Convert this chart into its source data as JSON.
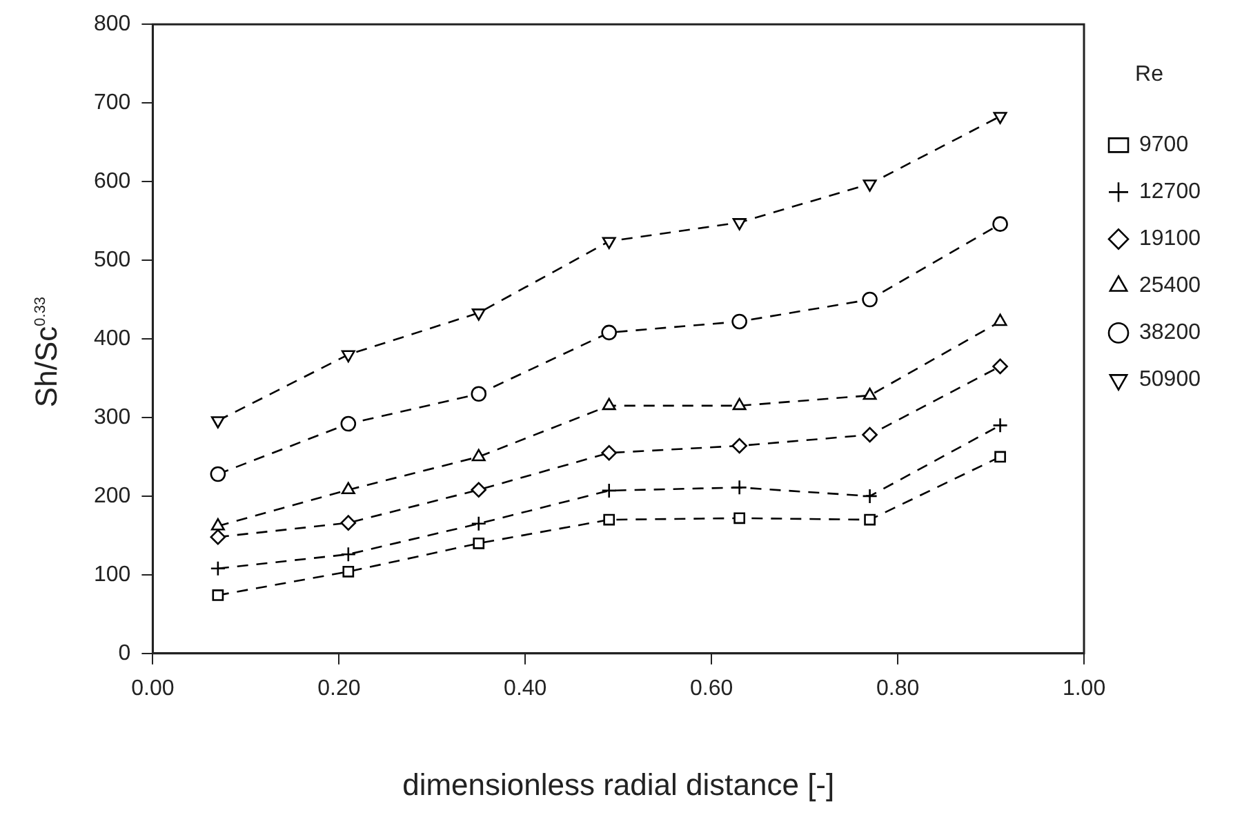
{
  "chart_data": {
    "type": "line",
    "xlabel": "dimensionless radial distance [-]",
    "ylabel": "Sh/Sc$^{0.33}$",
    "legend_title": "Re",
    "legend": "right",
    "grid": false,
    "line_style": "dashed",
    "x": [
      0.07,
      0.21,
      0.35,
      0.49,
      0.63,
      0.77,
      0.91
    ],
    "xlim": [
      0,
      1
    ],
    "xticks": [
      {
        "value": 0,
        "label": "0.00"
      },
      {
        "value": 0.2,
        "label": "0.20"
      },
      {
        "value": 0.4,
        "label": "0.40"
      },
      {
        "value": 0.6,
        "label": "0.60"
      },
      {
        "value": 0.8,
        "label": "0.80"
      },
      {
        "value": 1,
        "label": "1.00"
      }
    ],
    "ylim": [
      0,
      800
    ],
    "yticks": [
      0,
      100,
      200,
      300,
      400,
      500,
      600,
      700,
      800
    ],
    "series": [
      {
        "name": "9700",
        "color": "#000000",
        "marker": "square",
        "values": [
          74,
          104,
          140,
          170,
          172,
          170,
          250
        ]
      },
      {
        "name": "12700",
        "color": "#000000",
        "marker": "cross",
        "values": [
          108,
          126,
          165,
          207,
          211,
          200,
          290
        ]
      },
      {
        "name": "19100",
        "color": "#000000",
        "marker": "diamond",
        "values": [
          148,
          166,
          208,
          255,
          264,
          278,
          365
        ]
      },
      {
        "name": "25400",
        "color": "#000000",
        "marker": "triangle",
        "values": [
          162,
          208,
          250,
          315,
          315,
          328,
          422
        ]
      },
      {
        "name": "38200",
        "color": "#000000",
        "marker": "circle",
        "values": [
          228,
          292,
          330,
          408,
          422,
          450,
          546
        ]
      },
      {
        "name": "50900",
        "color": "#000000",
        "marker": "triangle-down",
        "values": [
          296,
          380,
          433,
          524,
          548,
          597,
          683
        ]
      }
    ]
  }
}
